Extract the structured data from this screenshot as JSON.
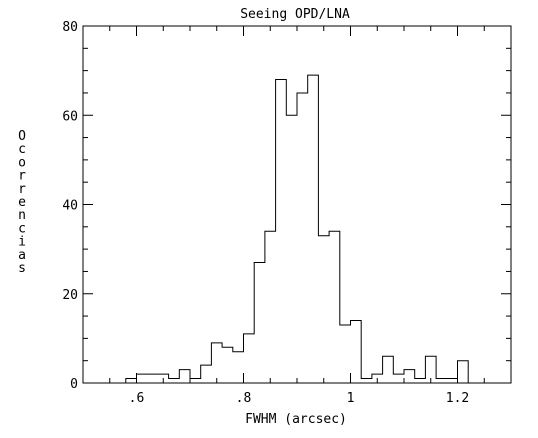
{
  "chart_data": {
    "type": "bar",
    "title": "Seeing OPD/LNA",
    "xlabel": "FWHM (arcsec)",
    "ylabel": "Ocorrencias",
    "xlim": [
      0.5,
      1.3
    ],
    "ylim": [
      0,
      80
    ],
    "xticks": [
      {
        "value": 0.6,
        "label": ".6"
      },
      {
        "value": 0.8,
        "label": ".8"
      },
      {
        "value": 1.0,
        "label": "1"
      },
      {
        "value": 1.2,
        "label": "1.2"
      }
    ],
    "yticks": [
      {
        "value": 0,
        "label": "0"
      },
      {
        "value": 20,
        "label": "20"
      },
      {
        "value": 40,
        "label": "40"
      },
      {
        "value": 60,
        "label": "60"
      },
      {
        "value": 80,
        "label": "80"
      }
    ],
    "bin_width": 0.02,
    "bins_start": [
      0.58,
      0.6,
      0.62,
      0.64,
      0.66,
      0.68,
      0.7,
      0.72,
      0.74,
      0.76,
      0.78,
      0.8,
      0.82,
      0.84,
      0.86,
      0.88,
      0.9,
      0.92,
      0.94,
      0.96,
      0.98,
      1.0,
      1.02,
      1.04,
      1.06,
      1.08,
      1.1,
      1.12,
      1.14,
      1.16,
      1.18,
      1.2
    ],
    "values": [
      1,
      2,
      2,
      2,
      1,
      3,
      1,
      4,
      9,
      8,
      7,
      11,
      27,
      34,
      68,
      60,
      65,
      69,
      33,
      34,
      13,
      14,
      1,
      2,
      6,
      2,
      3,
      1,
      6,
      1,
      1,
      5
    ]
  }
}
